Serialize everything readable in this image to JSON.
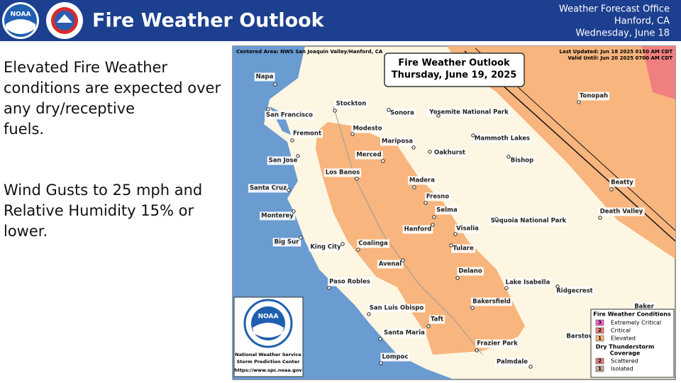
{
  "header": {
    "title": "Fire Weather Outlook",
    "logo": "NOAA",
    "office": [
      "Weather Forecast Office",
      "Hanford, CA",
      "Wednesday, June 18"
    ]
  },
  "summary": {
    "paragraph1": [
      "Elevated Fire Weather",
      "conditions are expected over",
      "any dry/receptive",
      "fuels."
    ],
    "paragraph2": [
      "Wind Gusts to 25 mph and",
      "Relative Humidity 15% or",
      "lower."
    ]
  },
  "map": {
    "centered_area": "Centered Area: NWS San Joaquin Valley/Hanford, CA",
    "last_updated": "Last Updated: Jun 18 2025 0150 AM CDT",
    "valid_until": "Valid Until: Jun 20 2025 0700 AM CDT",
    "title": [
      "Fire Weather Outlook",
      "Thursday, June 19, 2025"
    ],
    "cities": [
      "Napa",
      "San Francisco",
      "Stockton",
      "Sonora",
      "Yosemite National Park",
      "Tonopah",
      "Fremont",
      "Modesto",
      "Mariposa",
      "Mammoth Lakes",
      "San Jose",
      "Merced",
      "Oakhurst",
      "Bishop",
      "Los Banos",
      "Madera",
      "Beatty",
      "Santa Cruz",
      "Fresno",
      "Selma",
      "Death Valley",
      "Monterey",
      "Sequoia National Park",
      "Hanford",
      "Visalia",
      "Big Sur",
      "King City",
      "Coalinga",
      "Tulare",
      "Avenal",
      "Delano",
      "Paso Robles",
      "Lake Isabella",
      "Ridgecrest",
      "Bakersfield",
      "San Luis Obispo",
      "Baker",
      "Taft",
      "Barstow",
      "Santa Maria",
      "Frazier Park",
      "Lompoc",
      "Palmdale"
    ],
    "logo": {
      "name": "NOAA",
      "lines": [
        "National Weather Service",
        "Storm Prediction Center",
        "https://www.spc.noaa.gov"
      ]
    },
    "legend": {
      "title": "Fire Weather Conditions",
      "items": [
        {
          "code": "3",
          "label": "Extremely Critical",
          "color": "#f766d0"
        },
        {
          "code": "2",
          "label": "Critical",
          "color": "#f08080"
        },
        {
          "code": "1",
          "label": "Elevated",
          "color": "#f8b57e"
        }
      ],
      "thunder_title": [
        "Dry Thunderstorm",
        "Coverage"
      ],
      "thunder_items": [
        {
          "code": "2",
          "label": "Scattered",
          "color": "#e08080"
        },
        {
          "code": "1",
          "label": "Isolated",
          "color": "#c8a89a"
        }
      ]
    }
  }
}
